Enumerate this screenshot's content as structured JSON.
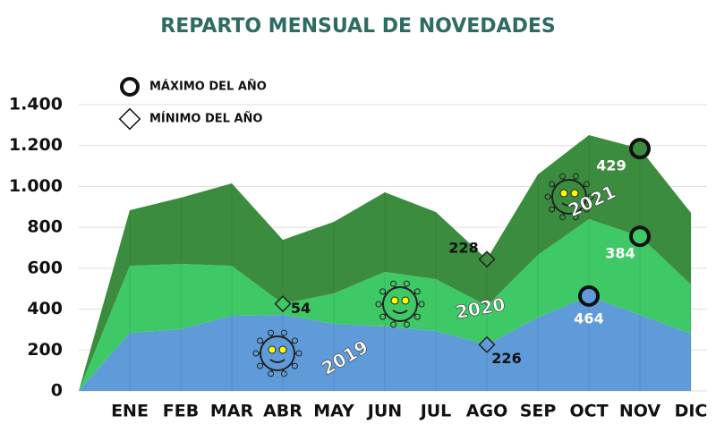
{
  "chart_data": {
    "type": "stacked_area",
    "title": "REPARTO MENSUAL DE NOVEDADES",
    "categories": [
      null,
      "ENE",
      "FEB",
      "MAR",
      "ABR",
      "MAY",
      "JUN",
      "JUL",
      "AGO",
      "SEP",
      "OCT",
      "NOV",
      "DIC"
    ],
    "series": [
      {
        "name": "2019",
        "color": "#5e9bd8",
        "values": [
          0,
          284,
          302,
          367,
          372,
          328,
          315,
          293,
          226,
          359,
          464,
          372,
          280
        ]
      },
      {
        "name": "2020",
        "color": "#3ec866",
        "values": [
          0,
          328,
          319,
          245,
          54,
          149,
          267,
          254,
          190,
          306,
          376,
          384,
          240
        ]
      },
      {
        "name": "2021",
        "color": "#3b8c3e",
        "values": [
          0,
          272,
          324,
          403,
          313,
          350,
          389,
          328,
          228,
          394,
          411,
          429,
          351
        ]
      }
    ],
    "ylim": [
      0,
      1400
    ],
    "yticks": [
      0,
      {
        "value": 200,
        "label": "200"
      },
      {
        "value": 400,
        "label": "400"
      },
      {
        "value": 600,
        "label": "600"
      },
      {
        "value": 800,
        "label": "800"
      },
      {
        "value": 1000,
        "label": "1.000"
      },
      {
        "value": 1200,
        "label": "1.200"
      },
      {
        "value": 1400,
        "label": "1.400"
      }
    ],
    "grid": true,
    "legend": [
      {
        "label": "MÁXIMO DEL AÑO",
        "marker": "circle"
      },
      {
        "label": "MÍNIMO DEL AÑO",
        "marker": "diamond"
      }
    ]
  }
}
